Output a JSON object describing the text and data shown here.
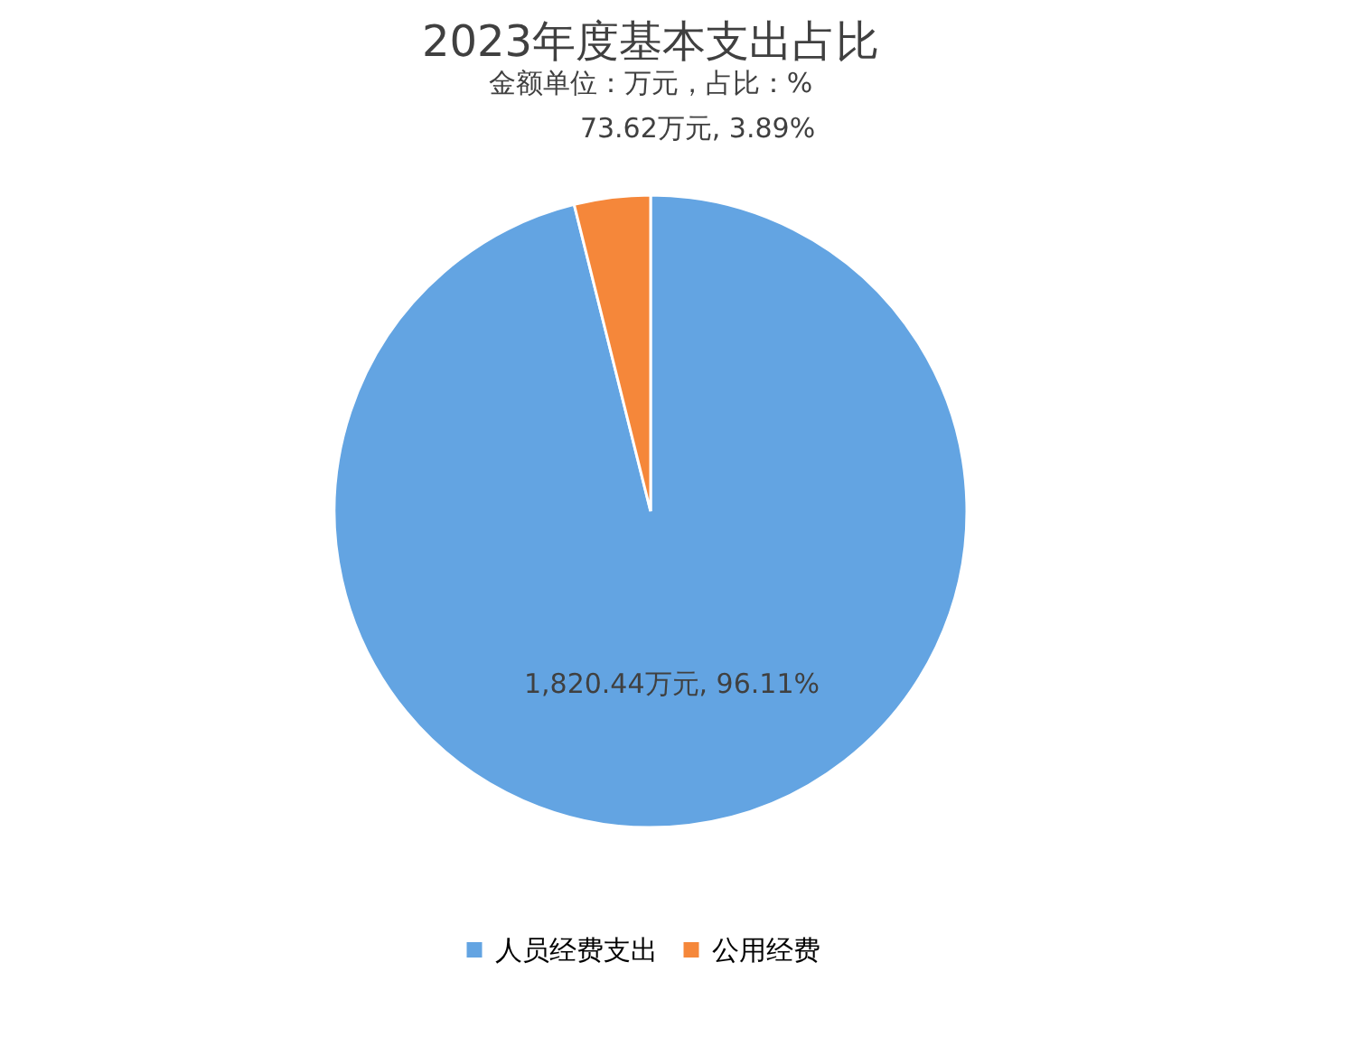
{
  "chart_data": {
    "type": "pie",
    "title": "2023年度基本支出占比",
    "subtitle": "金额单位：万元，占比：%",
    "categories": [
      "人员经费支出",
      "公用经费"
    ],
    "values": [
      1820.44,
      73.62
    ],
    "colors": [
      "#63a4e2",
      "#f5873a"
    ],
    "value_labels": [
      "1,820.44万元, 96.11%",
      "73.62万元, 3.89%"
    ],
    "legend": "bottom"
  }
}
